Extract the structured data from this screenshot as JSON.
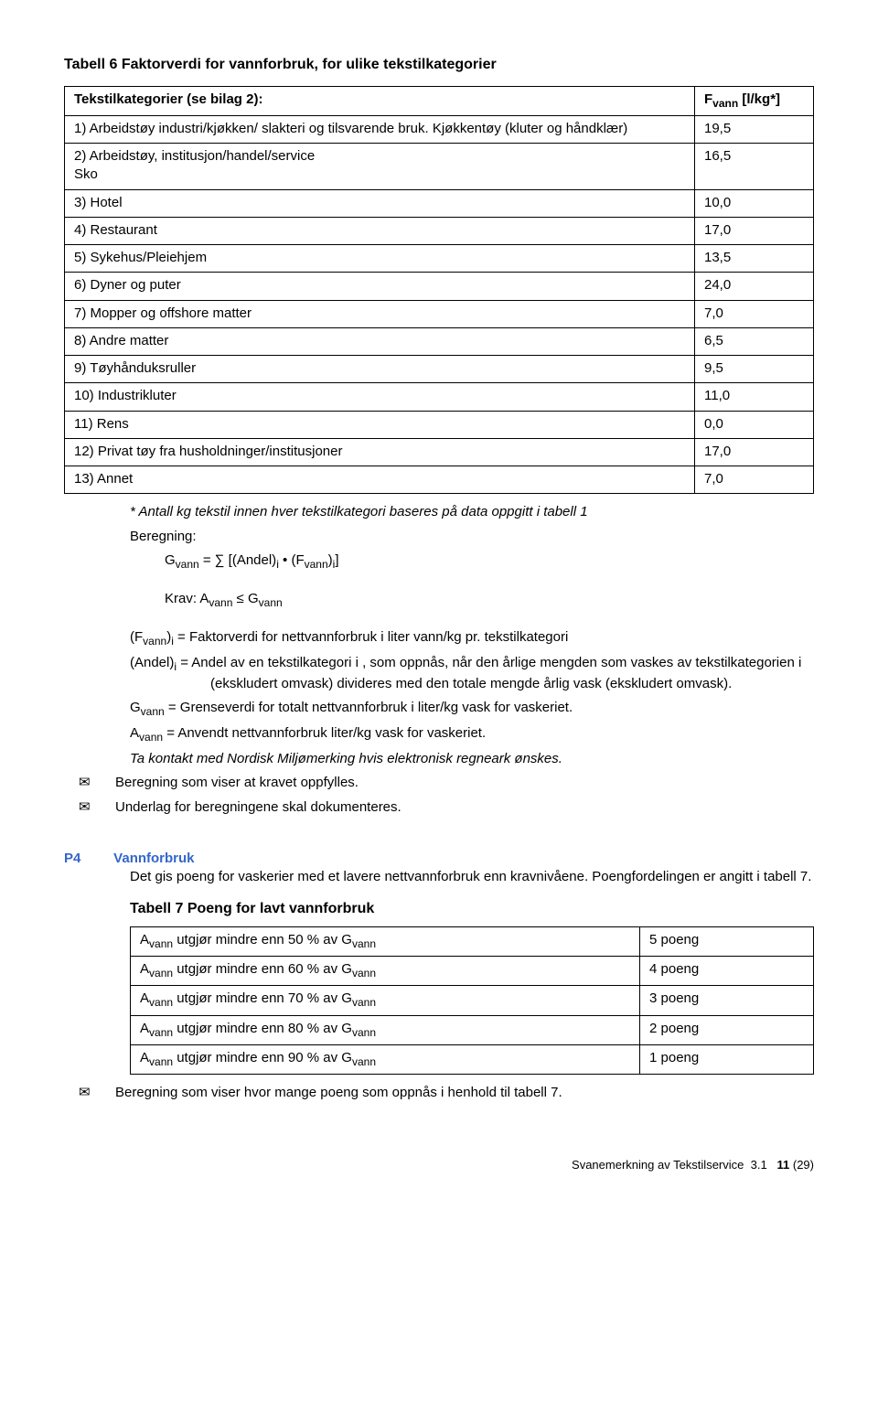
{
  "table6": {
    "title": "Tabell 6  Faktorverdi for vannforbruk, for ulike tekstilkategorier",
    "header_left": "Tekstilkategorier (se bilag 2):",
    "header_right_prefix": "F",
    "header_right_sub": "vann",
    "header_right_suffix": " [l/kg*]",
    "rows": [
      {
        "label": "1) Arbeidstøy industri/kjøkken/ slakteri og tilsvarende bruk. Kjøkkentøy (kluter og håndklær)",
        "value": "19,5"
      },
      {
        "label": "2) Arbeidstøy, institusjon/handel/service\nSko",
        "value": "16,5"
      },
      {
        "label": "3) Hotel",
        "value": "10,0"
      },
      {
        "label": "4) Restaurant",
        "value": "17,0"
      },
      {
        "label": "5) Sykehus/Pleiehjem",
        "value": "13,5"
      },
      {
        "label": "6) Dyner og puter",
        "value": "24,0"
      },
      {
        "label": "7) Mopper og offshore matter",
        "value": "7,0"
      },
      {
        "label": "8) Andre matter",
        "value": "6,5"
      },
      {
        "label": "9) Tøyhånduksruller",
        "value": "9,5"
      },
      {
        "label": "10) Industrikluter",
        "value": "11,0"
      },
      {
        "label": "11) Rens",
        "value": "0,0"
      },
      {
        "label": "12) Privat tøy fra husholdninger/institusjoner",
        "value": "17,0"
      },
      {
        "label": "13) Annet",
        "value": "7,0"
      }
    ],
    "footnote": "* Antall kg tekstil innen hver tekstilkategori baseres på data oppgitt i tabell 1"
  },
  "beregning_label": "Beregning:",
  "formula1_html": "G<span class='sub'>vann</span> = ∑ [(Andel)<span class='sub'>i</span> • (F<span class='sub'>vann</span>)<span class='sub'>i</span>]",
  "krav_html": "Krav: A<span class='sub'>vann</span> ≤ G<span class='sub'>vann</span>",
  "def1_html": "(F<span class='sub'>vann</span>)<span class='sub'>i</span> = Faktorverdi for nettvannforbruk i liter vann/kg pr. tekstilkategori",
  "def2_prefix_html": "(Andel)<span class='sub'>i</span> = ",
  "def2_body": "Andel av en tekstilkategori i , som oppnås, når den årlige mengden som vaskes av tekstilkategorien i (ekskludert omvask) divideres med den totale mengde årlig vask (ekskludert omvask).",
  "def3_html": "G<span class='sub'>vann</span> = Grenseverdi for totalt nettvannforbruk i liter/kg vask for vaskeriet.",
  "def4_html": "A<span class='sub'>vann</span> = Anvendt nettvannforbruk liter/kg vask for vaskeriet.",
  "italic_note": "Ta kontakt med Nordisk Miljømerking hvis elektronisk regneark ønskes.",
  "chk1": "Beregning som viser at kravet oppfylles.",
  "chk2": "Underlag for beregningene skal dokumenteres.",
  "p4": {
    "label": "P4",
    "title": "Vannforbruk",
    "body1": "Det gis poeng for vaskerier med et lavere nettvannforbruk enn kravnivåene. Poengfordelingen er angitt i tabell 7.",
    "table_title": "Tabell 7  Poeng for lavt vannforbruk",
    "rows": [
      {
        "pct": "50",
        "pts": "5 poeng"
      },
      {
        "pct": "60",
        "pts": "4 poeng"
      },
      {
        "pct": "70",
        "pts": "3 poeng"
      },
      {
        "pct": "80",
        "pts": "2 poeng"
      },
      {
        "pct": "90",
        "pts": "1 poeng"
      }
    ],
    "chk": "Beregning som viser hvor mange poeng som oppnås i henhold til tabell 7."
  },
  "footer_html": "Svanemerkning av Tekstilservice&nbsp;&nbsp;3.1&nbsp;&nbsp;&nbsp;<b>11</b> (29)",
  "chkglyph": "✉"
}
